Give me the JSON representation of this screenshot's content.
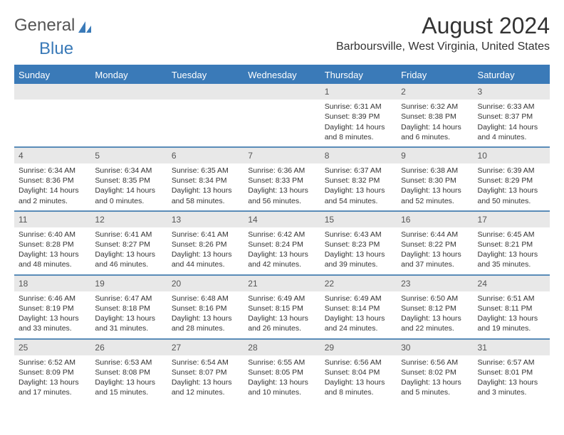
{
  "brand": {
    "part1": "General",
    "part2": "Blue"
  },
  "title": {
    "month_year": "August 2024",
    "location": "Barboursville, West Virginia, United States"
  },
  "colors": {
    "header_bg": "#3a7ab8",
    "header_text": "#ffffff",
    "daynum_bg": "#e8e8e8",
    "daynum_text": "#555555",
    "week_border": "#5a8cb8",
    "body_text": "#333333",
    "background": "#ffffff"
  },
  "day_names": [
    "Sunday",
    "Monday",
    "Tuesday",
    "Wednesday",
    "Thursday",
    "Friday",
    "Saturday"
  ],
  "first_weekday_index": 4,
  "days": [
    {
      "n": 1,
      "sr": "6:31 AM",
      "ss": "8:39 PM",
      "dl": "14 hours and 8 minutes."
    },
    {
      "n": 2,
      "sr": "6:32 AM",
      "ss": "8:38 PM",
      "dl": "14 hours and 6 minutes."
    },
    {
      "n": 3,
      "sr": "6:33 AM",
      "ss": "8:37 PM",
      "dl": "14 hours and 4 minutes."
    },
    {
      "n": 4,
      "sr": "6:34 AM",
      "ss": "8:36 PM",
      "dl": "14 hours and 2 minutes."
    },
    {
      "n": 5,
      "sr": "6:34 AM",
      "ss": "8:35 PM",
      "dl": "14 hours and 0 minutes."
    },
    {
      "n": 6,
      "sr": "6:35 AM",
      "ss": "8:34 PM",
      "dl": "13 hours and 58 minutes."
    },
    {
      "n": 7,
      "sr": "6:36 AM",
      "ss": "8:33 PM",
      "dl": "13 hours and 56 minutes."
    },
    {
      "n": 8,
      "sr": "6:37 AM",
      "ss": "8:32 PM",
      "dl": "13 hours and 54 minutes."
    },
    {
      "n": 9,
      "sr": "6:38 AM",
      "ss": "8:30 PM",
      "dl": "13 hours and 52 minutes."
    },
    {
      "n": 10,
      "sr": "6:39 AM",
      "ss": "8:29 PM",
      "dl": "13 hours and 50 minutes."
    },
    {
      "n": 11,
      "sr": "6:40 AM",
      "ss": "8:28 PM",
      "dl": "13 hours and 48 minutes."
    },
    {
      "n": 12,
      "sr": "6:41 AM",
      "ss": "8:27 PM",
      "dl": "13 hours and 46 minutes."
    },
    {
      "n": 13,
      "sr": "6:41 AM",
      "ss": "8:26 PM",
      "dl": "13 hours and 44 minutes."
    },
    {
      "n": 14,
      "sr": "6:42 AM",
      "ss": "8:24 PM",
      "dl": "13 hours and 42 minutes."
    },
    {
      "n": 15,
      "sr": "6:43 AM",
      "ss": "8:23 PM",
      "dl": "13 hours and 39 minutes."
    },
    {
      "n": 16,
      "sr": "6:44 AM",
      "ss": "8:22 PM",
      "dl": "13 hours and 37 minutes."
    },
    {
      "n": 17,
      "sr": "6:45 AM",
      "ss": "8:21 PM",
      "dl": "13 hours and 35 minutes."
    },
    {
      "n": 18,
      "sr": "6:46 AM",
      "ss": "8:19 PM",
      "dl": "13 hours and 33 minutes."
    },
    {
      "n": 19,
      "sr": "6:47 AM",
      "ss": "8:18 PM",
      "dl": "13 hours and 31 minutes."
    },
    {
      "n": 20,
      "sr": "6:48 AM",
      "ss": "8:16 PM",
      "dl": "13 hours and 28 minutes."
    },
    {
      "n": 21,
      "sr": "6:49 AM",
      "ss": "8:15 PM",
      "dl": "13 hours and 26 minutes."
    },
    {
      "n": 22,
      "sr": "6:49 AM",
      "ss": "8:14 PM",
      "dl": "13 hours and 24 minutes."
    },
    {
      "n": 23,
      "sr": "6:50 AM",
      "ss": "8:12 PM",
      "dl": "13 hours and 22 minutes."
    },
    {
      "n": 24,
      "sr": "6:51 AM",
      "ss": "8:11 PM",
      "dl": "13 hours and 19 minutes."
    },
    {
      "n": 25,
      "sr": "6:52 AM",
      "ss": "8:09 PM",
      "dl": "13 hours and 17 minutes."
    },
    {
      "n": 26,
      "sr": "6:53 AM",
      "ss": "8:08 PM",
      "dl": "13 hours and 15 minutes."
    },
    {
      "n": 27,
      "sr": "6:54 AM",
      "ss": "8:07 PM",
      "dl": "13 hours and 12 minutes."
    },
    {
      "n": 28,
      "sr": "6:55 AM",
      "ss": "8:05 PM",
      "dl": "13 hours and 10 minutes."
    },
    {
      "n": 29,
      "sr": "6:56 AM",
      "ss": "8:04 PM",
      "dl": "13 hours and 8 minutes."
    },
    {
      "n": 30,
      "sr": "6:56 AM",
      "ss": "8:02 PM",
      "dl": "13 hours and 5 minutes."
    },
    {
      "n": 31,
      "sr": "6:57 AM",
      "ss": "8:01 PM",
      "dl": "13 hours and 3 minutes."
    }
  ],
  "labels": {
    "sunrise": "Sunrise:",
    "sunset": "Sunset:",
    "daylight": "Daylight:"
  }
}
